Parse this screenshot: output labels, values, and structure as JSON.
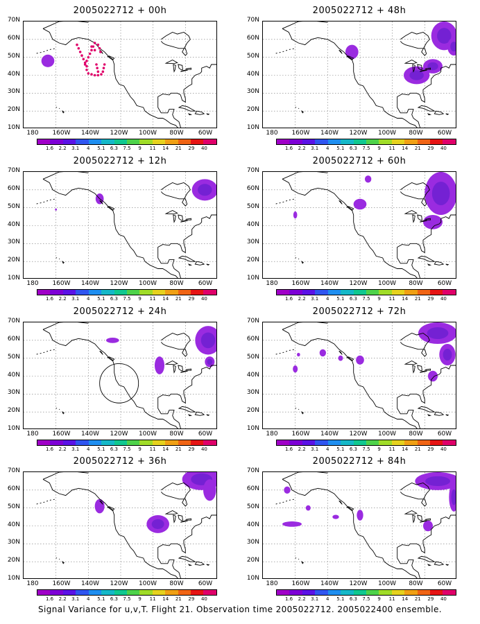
{
  "caption": "Signal Variance for u,v,T. Flight 21. Observation time 2005022712. 2005022400 ensemble.",
  "lat_labels": [
    "70N",
    "60N",
    "50N",
    "40N",
    "30N",
    "20N",
    "10N"
  ],
  "lon_labels": [
    "180",
    "160W",
    "140W",
    "120W",
    "100W",
    "80W",
    "60W"
  ],
  "colorbar": {
    "labels": [
      "1.6",
      "2.2",
      "3.1",
      "4",
      "5.1",
      "6.3",
      "7.5",
      "9",
      "11",
      "14",
      "21",
      "29",
      "40"
    ],
    "colors": [
      "#a000c8",
      "#7d00d6",
      "#5a12e6",
      "#2f55f0",
      "#1e8ef0",
      "#15b8c8",
      "#10c890",
      "#4ed24a",
      "#a0dc28",
      "#e6d21e",
      "#f0a014",
      "#f06414",
      "#e61414",
      "#e0006a"
    ]
  },
  "panels": [
    {
      "title": "2005022712 + 00h"
    },
    {
      "title": "2005022712 + 48h"
    },
    {
      "title": "2005022712 + 12h"
    },
    {
      "title": "2005022712 + 60h"
    },
    {
      "title": "2005022712 + 24h"
    },
    {
      "title": "2005022712 + 72h"
    },
    {
      "title": "2005022712 + 36h"
    },
    {
      "title": "2005022712 + 84h"
    }
  ],
  "map_extent": {
    "lon_min": -180,
    "lon_max": -60,
    "lat_min": 10,
    "lat_max": 70
  },
  "colors": {
    "signal_fill": "#9a2be0",
    "signal_dark": "#6a1fcf",
    "flight_track": "#e0006a",
    "grid": "#777777"
  }
}
